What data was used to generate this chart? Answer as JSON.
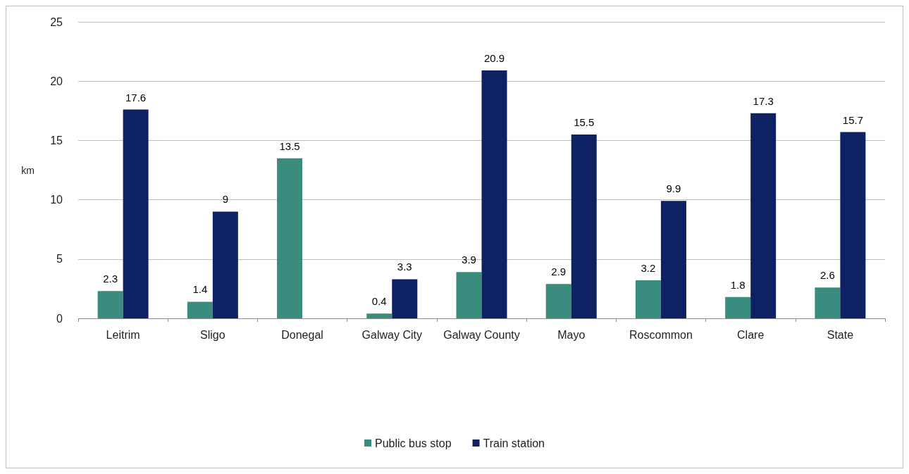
{
  "chart_data": {
    "type": "bar",
    "ylabel": "km",
    "categories": [
      "Leitrim",
      "Sligo",
      "Donegal",
      "Galway City",
      "Galway County",
      "Mayo",
      "Roscommon",
      "Clare",
      "State"
    ],
    "series": [
      {
        "name": "Public bus stop",
        "color": "#3a8c7e",
        "values": [
          2.3,
          1.4,
          13.5,
          0.4,
          3.9,
          2.9,
          3.2,
          1.8,
          2.6
        ]
      },
      {
        "name": "Train station",
        "color": "#0e2162",
        "values": [
          17.6,
          9,
          null,
          3.3,
          20.9,
          15.5,
          9.9,
          17.3,
          15.7
        ]
      }
    ],
    "ylim": [
      0,
      25
    ],
    "yticks": [
      0,
      5,
      10,
      15,
      20,
      25
    ],
    "grid": "y",
    "legend": "bottom",
    "data_labels": true
  }
}
